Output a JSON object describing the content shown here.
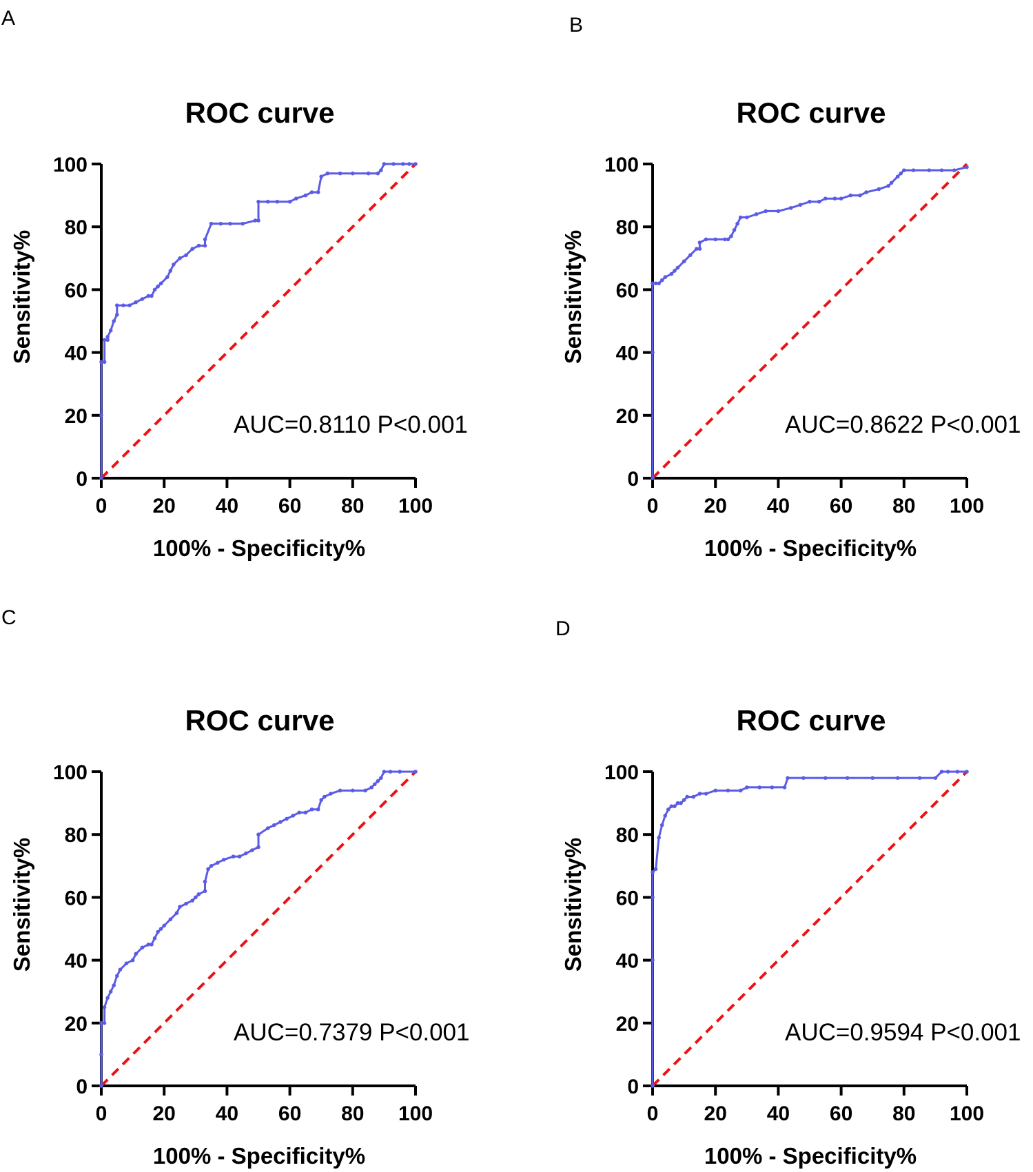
{
  "colors": {
    "roc": "#5b5be6",
    "reference": "#ee1111",
    "axis": "#000000"
  },
  "chart_data": [
    {
      "panel": "A",
      "type": "line",
      "title": "ROC curve",
      "xlabel": "100% - Specificity%",
      "ylabel": "Sensitivity%",
      "xlim": [
        0,
        100
      ],
      "ylim": [
        0,
        100
      ],
      "xticks": [
        "0",
        "20",
        "40",
        "60",
        "80",
        "100"
      ],
      "yticks": [
        "0",
        "20",
        "40",
        "60",
        "80",
        "100"
      ],
      "annotation": "AUC=0.8110 P<0.001",
      "series": [
        {
          "name": "ROC",
          "x": [
            0,
            0,
            0,
            1,
            1,
            2,
            2,
            3,
            4,
            5,
            5,
            7,
            9,
            11,
            13,
            15,
            16,
            17,
            18,
            19,
            21,
            22,
            23,
            25,
            27,
            29,
            31,
            33,
            33,
            35,
            38,
            41,
            45,
            49,
            50,
            50,
            53,
            56,
            60,
            62,
            65,
            67,
            69,
            70,
            72,
            76,
            80,
            85,
            88,
            89,
            90,
            93,
            96,
            98,
            100
          ],
          "y": [
            0,
            20,
            37,
            37,
            44,
            44,
            45,
            47,
            50,
            52,
            55,
            55,
            55,
            56,
            57,
            58,
            58,
            60,
            61,
            62,
            64,
            66,
            68,
            70,
            71,
            73,
            74,
            74,
            76,
            81,
            81,
            81,
            81,
            82,
            82,
            88,
            88,
            88,
            88,
            89,
            90,
            91,
            91,
            96,
            97,
            97,
            97,
            97,
            97,
            98,
            100,
            100,
            100,
            100,
            100
          ]
        },
        {
          "name": "Reference",
          "x": [
            0,
            100
          ],
          "y": [
            0,
            100
          ]
        }
      ]
    },
    {
      "panel": "B",
      "type": "line",
      "title": "ROC curve",
      "xlabel": "100% - Specificity%",
      "ylabel": "Sensitivity%",
      "xlim": [
        0,
        100
      ],
      "ylim": [
        0,
        100
      ],
      "xticks": [
        "0",
        "20",
        "40",
        "60",
        "80",
        "100"
      ],
      "yticks": [
        "0",
        "20",
        "40",
        "60",
        "80",
        "100"
      ],
      "annotation": "AUC=0.8622 P<0.001",
      "series": [
        {
          "name": "ROC",
          "x": [
            0,
            0,
            0,
            1,
            2,
            3,
            4,
            6,
            7,
            8,
            10,
            10,
            12,
            14,
            15,
            15,
            17,
            20,
            23,
            24,
            25,
            26,
            27,
            28,
            30,
            33,
            36,
            40,
            44,
            47,
            50,
            53,
            55,
            58,
            60,
            63,
            66,
            68,
            72,
            75,
            76,
            78,
            79,
            80,
            83,
            88,
            92,
            96,
            100
          ],
          "y": [
            0,
            40,
            62,
            62,
            62,
            63,
            64,
            65,
            66,
            67,
            69,
            69,
            71,
            73,
            73,
            75,
            76,
            76,
            76,
            76,
            77,
            79,
            81,
            83,
            83,
            84,
            85,
            85,
            86,
            87,
            88,
            88,
            89,
            89,
            89,
            90,
            90,
            91,
            92,
            93,
            94,
            96,
            97,
            98,
            98,
            98,
            98,
            98,
            99
          ]
        },
        {
          "name": "Reference",
          "x": [
            0,
            100
          ],
          "y": [
            0,
            100
          ]
        }
      ]
    },
    {
      "panel": "C",
      "type": "line",
      "title": "ROC curve",
      "xlabel": "100% - Specificity%",
      "ylabel": "Sensitivity%",
      "xlim": [
        0,
        100
      ],
      "ylim": [
        0,
        100
      ],
      "xticks": [
        "0",
        "20",
        "40",
        "60",
        "80",
        "100"
      ],
      "yticks": [
        "0",
        "20",
        "40",
        "60",
        "80",
        "100"
      ],
      "annotation": "AUC=0.7379 P<0.001",
      "series": [
        {
          "name": "ROC",
          "x": [
            0,
            0,
            0,
            1,
            1,
            2,
            3,
            4,
            5,
            6,
            8,
            10,
            11,
            13,
            15,
            16,
            17,
            18,
            19,
            20,
            22,
            24,
            25,
            27,
            29,
            30,
            31,
            33,
            33,
            34,
            35,
            37,
            39,
            42,
            44,
            46,
            48,
            50,
            50,
            53,
            55,
            57,
            59,
            61,
            63,
            65,
            67,
            69,
            70,
            71,
            73,
            76,
            80,
            84,
            86,
            87,
            88,
            89,
            90,
            92,
            95,
            100
          ],
          "y": [
            0,
            10,
            20,
            20,
            25,
            28,
            30,
            32,
            35,
            37,
            39,
            40,
            42,
            44,
            45,
            45,
            47,
            49,
            50,
            51,
            53,
            55,
            57,
            58,
            59,
            60,
            61,
            62,
            65,
            69,
            70,
            71,
            72,
            73,
            73,
            74,
            75,
            76,
            80,
            82,
            83,
            84,
            85,
            86,
            87,
            87,
            88,
            88,
            91,
            92,
            93,
            94,
            94,
            94,
            95,
            96,
            97,
            98,
            100,
            100,
            100,
            100
          ]
        },
        {
          "name": "Reference",
          "x": [
            0,
            100
          ],
          "y": [
            0,
            100
          ]
        }
      ]
    },
    {
      "panel": "D",
      "type": "line",
      "title": "ROC curve",
      "xlabel": "100% - Specificity%",
      "ylabel": "Sensitivity%",
      "xlim": [
        0,
        100
      ],
      "ylim": [
        0,
        100
      ],
      "xticks": [
        "0",
        "20",
        "40",
        "60",
        "80",
        "100"
      ],
      "yticks": [
        "0",
        "20",
        "40",
        "60",
        "80",
        "100"
      ],
      "annotation": "AUC=0.9594 P<0.001",
      "series": [
        {
          "name": "ROC",
          "x": [
            0,
            0,
            0,
            0,
            1,
            2,
            3,
            4,
            5,
            6,
            7,
            8,
            9,
            10,
            11,
            13,
            15,
            17,
            20,
            24,
            28,
            30,
            34,
            38,
            42,
            43,
            48,
            55,
            62,
            70,
            78,
            85,
            90,
            92,
            94,
            97,
            100
          ],
          "y": [
            0,
            40,
            60,
            68,
            69,
            79,
            83,
            86,
            88,
            89,
            89,
            90,
            90,
            91,
            92,
            92,
            93,
            93,
            94,
            94,
            94,
            95,
            95,
            95,
            95,
            98,
            98,
            98,
            98,
            98,
            98,
            98,
            98,
            100,
            100,
            100,
            100
          ]
        },
        {
          "name": "Reference",
          "x": [
            0,
            100
          ],
          "y": [
            0,
            100
          ]
        }
      ]
    }
  ]
}
